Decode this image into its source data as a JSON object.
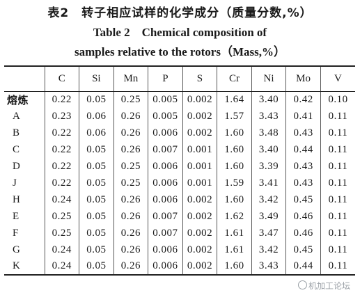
{
  "caption": {
    "cn": "表2　转子相应试样的化学成分（质量分数,%）",
    "en_line1": "Table 2　Chemical composition of",
    "en_line2": "samples relative to the rotors（Mass,%）"
  },
  "table": {
    "headers": [
      "",
      "C",
      "Si",
      "Mn",
      "P",
      "S",
      "Cr",
      "Ni",
      "Mo",
      "V"
    ],
    "rows": [
      {
        "name": "熔炼",
        "values": [
          "0.22",
          "0.05",
          "0.25",
          "0.005",
          "0.002",
          "1.64",
          "3.40",
          "0.42",
          "0.10"
        ]
      },
      {
        "name": "A",
        "values": [
          "0.23",
          "0.06",
          "0.26",
          "0.005",
          "0.002",
          "1.57",
          "3.43",
          "0.41",
          "0.11"
        ]
      },
      {
        "name": "B",
        "values": [
          "0.22",
          "0.06",
          "0.26",
          "0.006",
          "0.002",
          "1.60",
          "3.48",
          "0.43",
          "0.11"
        ]
      },
      {
        "name": "C",
        "values": [
          "0.22",
          "0.05",
          "0.26",
          "0.007",
          "0.001",
          "1.60",
          "3.40",
          "0.44",
          "0.11"
        ]
      },
      {
        "name": "D",
        "values": [
          "0.22",
          "0.05",
          "0.25",
          "0.006",
          "0.001",
          "1.60",
          "3.39",
          "0.43",
          "0.11"
        ]
      },
      {
        "name": "J",
        "values": [
          "0.22",
          "0.05",
          "0.25",
          "0.006",
          "0.001",
          "1.59",
          "3.41",
          "0.43",
          "0.11"
        ]
      },
      {
        "name": "H",
        "values": [
          "0.24",
          "0.05",
          "0.26",
          "0.006",
          "0.002",
          "1.60",
          "3.42",
          "0.45",
          "0.11"
        ]
      },
      {
        "name": "E",
        "values": [
          "0.25",
          "0.05",
          "0.26",
          "0.007",
          "0.002",
          "1.62",
          "3.49",
          "0.46",
          "0.11"
        ]
      },
      {
        "name": "F",
        "values": [
          "0.25",
          "0.05",
          "0.26",
          "0.007",
          "0.002",
          "1.61",
          "3.47",
          "0.46",
          "0.11"
        ]
      },
      {
        "name": "G",
        "values": [
          "0.24",
          "0.05",
          "0.26",
          "0.006",
          "0.002",
          "1.61",
          "3.42",
          "0.45",
          "0.11"
        ]
      },
      {
        "name": "K",
        "values": [
          "0.24",
          "0.05",
          "0.26",
          "0.006",
          "0.002",
          "1.60",
          "3.43",
          "0.44",
          "0.11"
        ]
      }
    ]
  },
  "watermark": {
    "text": "机加工论坛",
    "icon": "speech-bubble-icon"
  }
}
